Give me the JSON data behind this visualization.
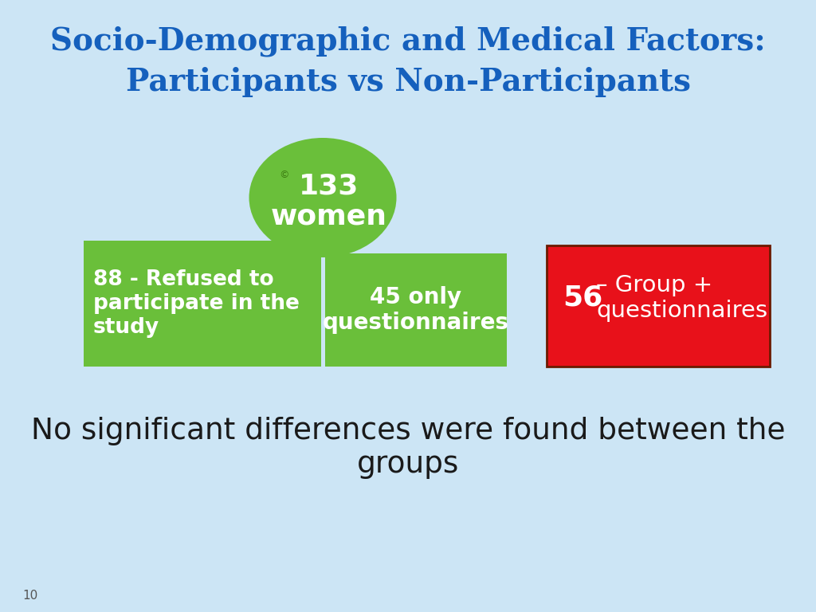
{
  "title_line1": "Socio-Demographic and Medical Factors:",
  "title_line2": "Participants vs Non-Participants",
  "title_color": "#1560bd",
  "background_color": "#cce5f5",
  "ellipse_text_line1": "133",
  "ellipse_text_line2": "women",
  "ellipse_color": "#6abf3a",
  "ellipse_text_color": "#ffffff",
  "box1_text": "88 - Refused to\nparticipate in the\nstudy",
  "box1_color": "#6abf3a",
  "box1_text_color": "#ffffff",
  "box2_text": "45 only\nquestionnaires",
  "box2_color": "#6abf3a",
  "box2_text_color": "#ffffff",
  "box3_text_bold": "56",
  "box3_text_normal": "– Group +\nquestionnaires",
  "box3_color": "#e8111a",
  "box3_text_color": "#ffffff",
  "bottom_text": "No significant differences were found between the\ngroups",
  "bottom_text_color": "#1a1a1a",
  "page_number": "10",
  "copyright_symbol": "©"
}
